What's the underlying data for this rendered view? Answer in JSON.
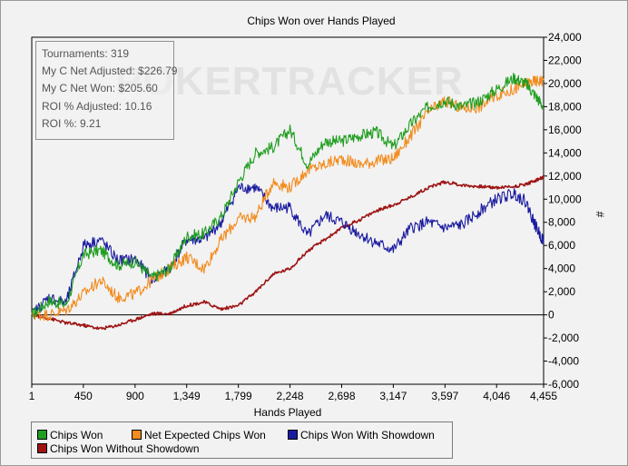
{
  "chart_data": {
    "type": "line",
    "title": "Chips Won over Hands Played",
    "xlabel": "Hands Played",
    "ylabel": "#",
    "xlim": [
      1,
      4455
    ],
    "ylim": [
      -6000,
      24000
    ],
    "x_ticks": [
      "1",
      "450",
      "900",
      "1,349",
      "1,799",
      "2,248",
      "2,698",
      "3,147",
      "3,597",
      "4,046",
      "4,455"
    ],
    "y_ticks": [
      "24,000",
      "22,000",
      "20,000",
      "18,000",
      "16,000",
      "14,000",
      "12,000",
      "10,000",
      "8,000",
      "6,000",
      "4,000",
      "2,000",
      "0",
      "-2,000",
      "-4,000",
      "-6,000"
    ],
    "grid": false,
    "legend_position": "bottom-left",
    "watermark": "POKERTRACKER",
    "series": [
      {
        "name": "Chips Won",
        "color": "#1f9e1f",
        "x": [
          1,
          150,
          300,
          450,
          600,
          750,
          900,
          1050,
          1200,
          1349,
          1500,
          1650,
          1799,
          1950,
          2100,
          2248,
          2400,
          2550,
          2698,
          2850,
          3000,
          3147,
          3300,
          3450,
          3597,
          3750,
          3900,
          4046,
          4200,
          4300,
          4380,
          4455
        ],
        "y": [
          0,
          1200,
          900,
          5200,
          5600,
          4300,
          4600,
          3200,
          4000,
          6800,
          7000,
          8500,
          11500,
          14000,
          14500,
          16000,
          13000,
          15000,
          15000,
          15500,
          15800,
          14500,
          16500,
          18000,
          18500,
          18000,
          18500,
          19500,
          20500,
          20000,
          19000,
          18000
        ]
      },
      {
        "name": "Net Expected Chips Won",
        "color": "#f28c1e",
        "x": [
          1,
          150,
          300,
          450,
          600,
          750,
          900,
          1050,
          1200,
          1349,
          1500,
          1650,
          1799,
          1950,
          2100,
          2248,
          2400,
          2550,
          2698,
          2850,
          3000,
          3147,
          3300,
          3450,
          3597,
          3750,
          3900,
          4046,
          4200,
          4300,
          4380,
          4455
        ],
        "y": [
          0,
          0,
          400,
          1800,
          3000,
          1500,
          1800,
          3000,
          4000,
          5000,
          4000,
          6500,
          8300,
          8500,
          11500,
          11000,
          12500,
          13000,
          13500,
          13000,
          13300,
          13500,
          15500,
          17500,
          18500,
          17800,
          18000,
          19000,
          19500,
          20000,
          20200,
          20300
        ]
      },
      {
        "name": "Chips Won With Showdown",
        "color": "#1a1aa0",
        "x": [
          1,
          150,
          300,
          450,
          600,
          750,
          900,
          1050,
          1200,
          1349,
          1500,
          1650,
          1799,
          1950,
          2100,
          2248,
          2400,
          2550,
          2698,
          2850,
          3000,
          3147,
          3300,
          3450,
          3597,
          3750,
          3900,
          4046,
          4200,
          4300,
          4380,
          4455
        ],
        "y": [
          0,
          1500,
          1000,
          6000,
          6500,
          4700,
          4800,
          3100,
          4000,
          6500,
          6500,
          8000,
          11000,
          11000,
          9200,
          9300,
          6800,
          8600,
          8000,
          7000,
          6200,
          5600,
          7500,
          8000,
          7500,
          7800,
          9000,
          10000,
          10500,
          9800,
          7800,
          6300
        ]
      },
      {
        "name": "Chips Won Without Showdown",
        "color": "#9e1414",
        "x": [
          1,
          150,
          300,
          450,
          600,
          750,
          900,
          1050,
          1200,
          1349,
          1500,
          1650,
          1799,
          1950,
          2100,
          2248,
          2400,
          2550,
          2698,
          2850,
          3000,
          3147,
          3300,
          3450,
          3597,
          3750,
          3900,
          4046,
          4200,
          4300,
          4380,
          4455
        ],
        "y": [
          0,
          -300,
          -700,
          -900,
          -1200,
          -900,
          -400,
          100,
          100,
          800,
          1100,
          500,
          800,
          2000,
          3500,
          4000,
          5500,
          6500,
          7500,
          8200,
          9000,
          9500,
          10200,
          11000,
          11500,
          11200,
          11100,
          11000,
          11100,
          11300,
          11600,
          11900
        ]
      }
    ]
  },
  "stats": [
    "Tournaments: 319",
    "My C Net Adjusted: $226.79",
    "My C Net Won: $205.60",
    "ROI % Adjusted: 10.16",
    "ROI %: 9.21"
  ]
}
